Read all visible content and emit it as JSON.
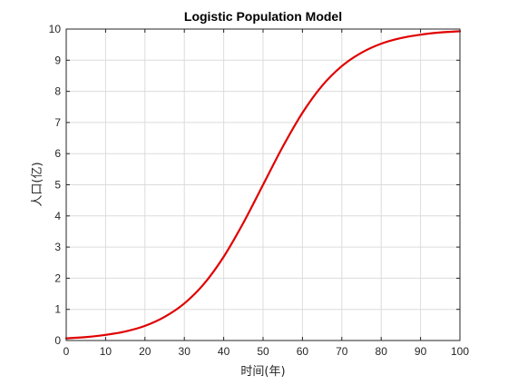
{
  "chart_data": {
    "type": "line",
    "title": "Logistic Population Model",
    "xlabel": "时间(年)",
    "ylabel": "人口(亿)",
    "xlim": [
      0,
      100
    ],
    "ylim": [
      0,
      10
    ],
    "xticks": [
      "0",
      "10",
      "20",
      "30",
      "40",
      "50",
      "60",
      "70",
      "80",
      "90",
      "100"
    ],
    "yticks": [
      "0",
      "1",
      "2",
      "3",
      "4",
      "5",
      "6",
      "7",
      "8",
      "9",
      "10"
    ],
    "grid": true,
    "legend": "none",
    "series": [
      {
        "color": "#e00000",
        "x": [
          0,
          5,
          10,
          15,
          20,
          25,
          30,
          35,
          40,
          45,
          50,
          55,
          60,
          65,
          70,
          75,
          80,
          85,
          90,
          95,
          100
        ],
        "values": [
          0.07,
          0.11,
          0.18,
          0.29,
          0.47,
          0.76,
          1.19,
          1.82,
          2.69,
          3.78,
          5.0,
          6.22,
          7.31,
          8.18,
          8.81,
          9.24,
          9.53,
          9.71,
          9.82,
          9.89,
          9.93
        ]
      }
    ]
  }
}
